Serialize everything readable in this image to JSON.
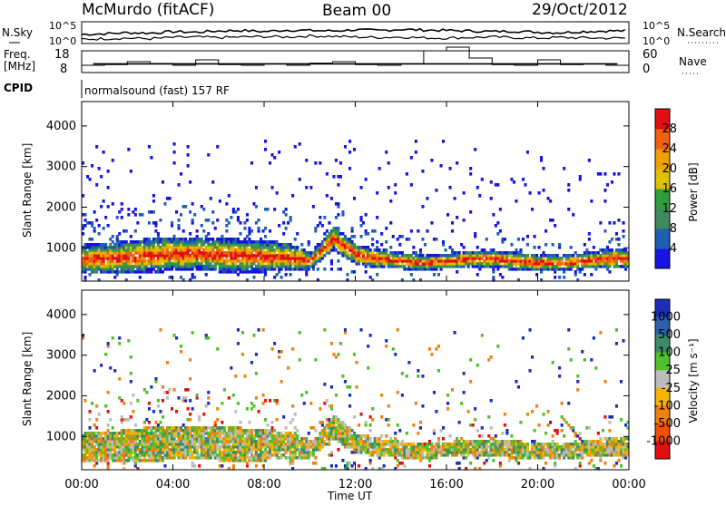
{
  "header": {
    "station": "McMurdo (fitACF)",
    "beam": "Beam 00",
    "date": "29/Oct/2012"
  },
  "chart_data": [
    {
      "type": "line",
      "panel": "noise",
      "left_label": "N.Sky",
      "right_label": "N.Search",
      "left_ticks": [
        "10^5",
        "10^0"
      ],
      "right_ticks": [
        "10^5",
        "10^0"
      ],
      "series": [
        {
          "name": "N.Sky",
          "values": [
            0.42,
            0.45,
            0.5,
            0.48,
            0.55,
            0.52,
            0.58,
            0.6,
            0.55,
            0.62,
            0.6,
            0.58,
            0.63,
            0.6,
            0.65,
            0.62,
            0.6,
            0.58,
            0.55,
            0.57,
            0.52,
            0.5,
            0.55,
            0.58
          ]
        },
        {
          "name": "N.Search",
          "values": [
            0.2,
            0.22,
            0.25,
            0.22,
            0.28,
            0.3,
            0.27,
            0.3,
            0.32,
            0.3,
            0.35,
            0.33,
            0.3,
            0.28,
            0.3,
            0.26,
            0.25,
            0.28,
            0.3,
            0.27,
            0.25,
            0.28,
            0.26,
            0.25
          ]
        }
      ]
    },
    {
      "type": "line",
      "panel": "frequency",
      "left_label_top": "Freq.",
      "left_label_bottom": "[MHz]",
      "right_label": "Nave",
      "left_ticks": [
        "18",
        "8"
      ],
      "right_ticks": [
        "60",
        "0"
      ],
      "ylim_left": [
        8,
        18
      ],
      "ylim_right": [
        0,
        60
      ],
      "series": [
        {
          "name": "Freq.",
          "values": [
            12,
            12,
            12,
            12,
            12,
            12,
            12,
            12,
            12,
            12,
            12,
            12,
            12,
            12,
            12,
            12,
            12,
            12,
            12,
            12,
            12,
            12,
            12,
            12
          ]
        },
        {
          "name": "Nave",
          "values": [
            20,
            22,
            30,
            25,
            20,
            35,
            22,
            20,
            24,
            20,
            26,
            30,
            22,
            20,
            24,
            60,
            70,
            40,
            22,
            20,
            35,
            22,
            24,
            20
          ]
        }
      ]
    },
    {
      "type": "text",
      "panel": "cpid",
      "label": "CPID",
      "value": "normalsound (fast) 157 RF"
    },
    {
      "type": "heatmap",
      "panel": "power",
      "ylabel": "Slant Range [km]",
      "yticks": [
        "1000",
        "2000",
        "3000",
        "4000"
      ],
      "ylim": [
        180,
        4600
      ],
      "xlim": [
        "00:00",
        "24:00"
      ],
      "colorbar_label": "Power [dB]",
      "colorbar_ticks": [
        "4",
        "8",
        "12",
        "16",
        "20",
        "24",
        "28"
      ],
      "colors": [
        "#1515e0",
        "#1f5fb5",
        "#3f8a5c",
        "#2e9e3a",
        "#e0c000",
        "#f0a000",
        "#f06010",
        "#e01010"
      ],
      "band_hours": [
        0,
        1,
        2,
        3,
        4,
        5,
        6,
        7,
        8,
        9,
        10,
        11,
        12,
        13,
        14,
        15,
        16,
        17,
        18,
        19,
        20,
        21,
        22,
        23
      ],
      "band_center_km": [
        700,
        700,
        750,
        780,
        820,
        820,
        800,
        780,
        760,
        740,
        650,
        1200,
        800,
        700,
        650,
        600,
        650,
        700,
        700,
        650,
        600,
        600,
        650,
        700
      ],
      "band_half_width_km": [
        350,
        380,
        400,
        420,
        420,
        400,
        420,
        400,
        380,
        350,
        200,
        300,
        250,
        220,
        200,
        180,
        180,
        200,
        220,
        220,
        200,
        180,
        200,
        250
      ]
    },
    {
      "type": "heatmap",
      "panel": "velocity",
      "ylabel": "Slant Range [km]",
      "yticks": [
        "1000",
        "2000",
        "3000",
        "4000"
      ],
      "ylim": [
        180,
        4600
      ],
      "xlabel": "Time UT",
      "xticks": [
        "00:00",
        "04:00",
        "08:00",
        "12:00",
        "16:00",
        "20:00",
        "00:00"
      ],
      "colorbar_label": "Velocity [m s⁻¹]",
      "colorbar_ticks": [
        "1000",
        "500",
        "100",
        "25",
        "-25",
        "-100",
        "-500",
        "-1000"
      ],
      "colors": [
        "#1a2fb8",
        "#2f5fa8",
        "#3d8a66",
        "#4fc02a",
        "#bcbcbc",
        "#f4b400",
        "#f08010",
        "#f05000",
        "#e01010"
      ]
    }
  ]
}
